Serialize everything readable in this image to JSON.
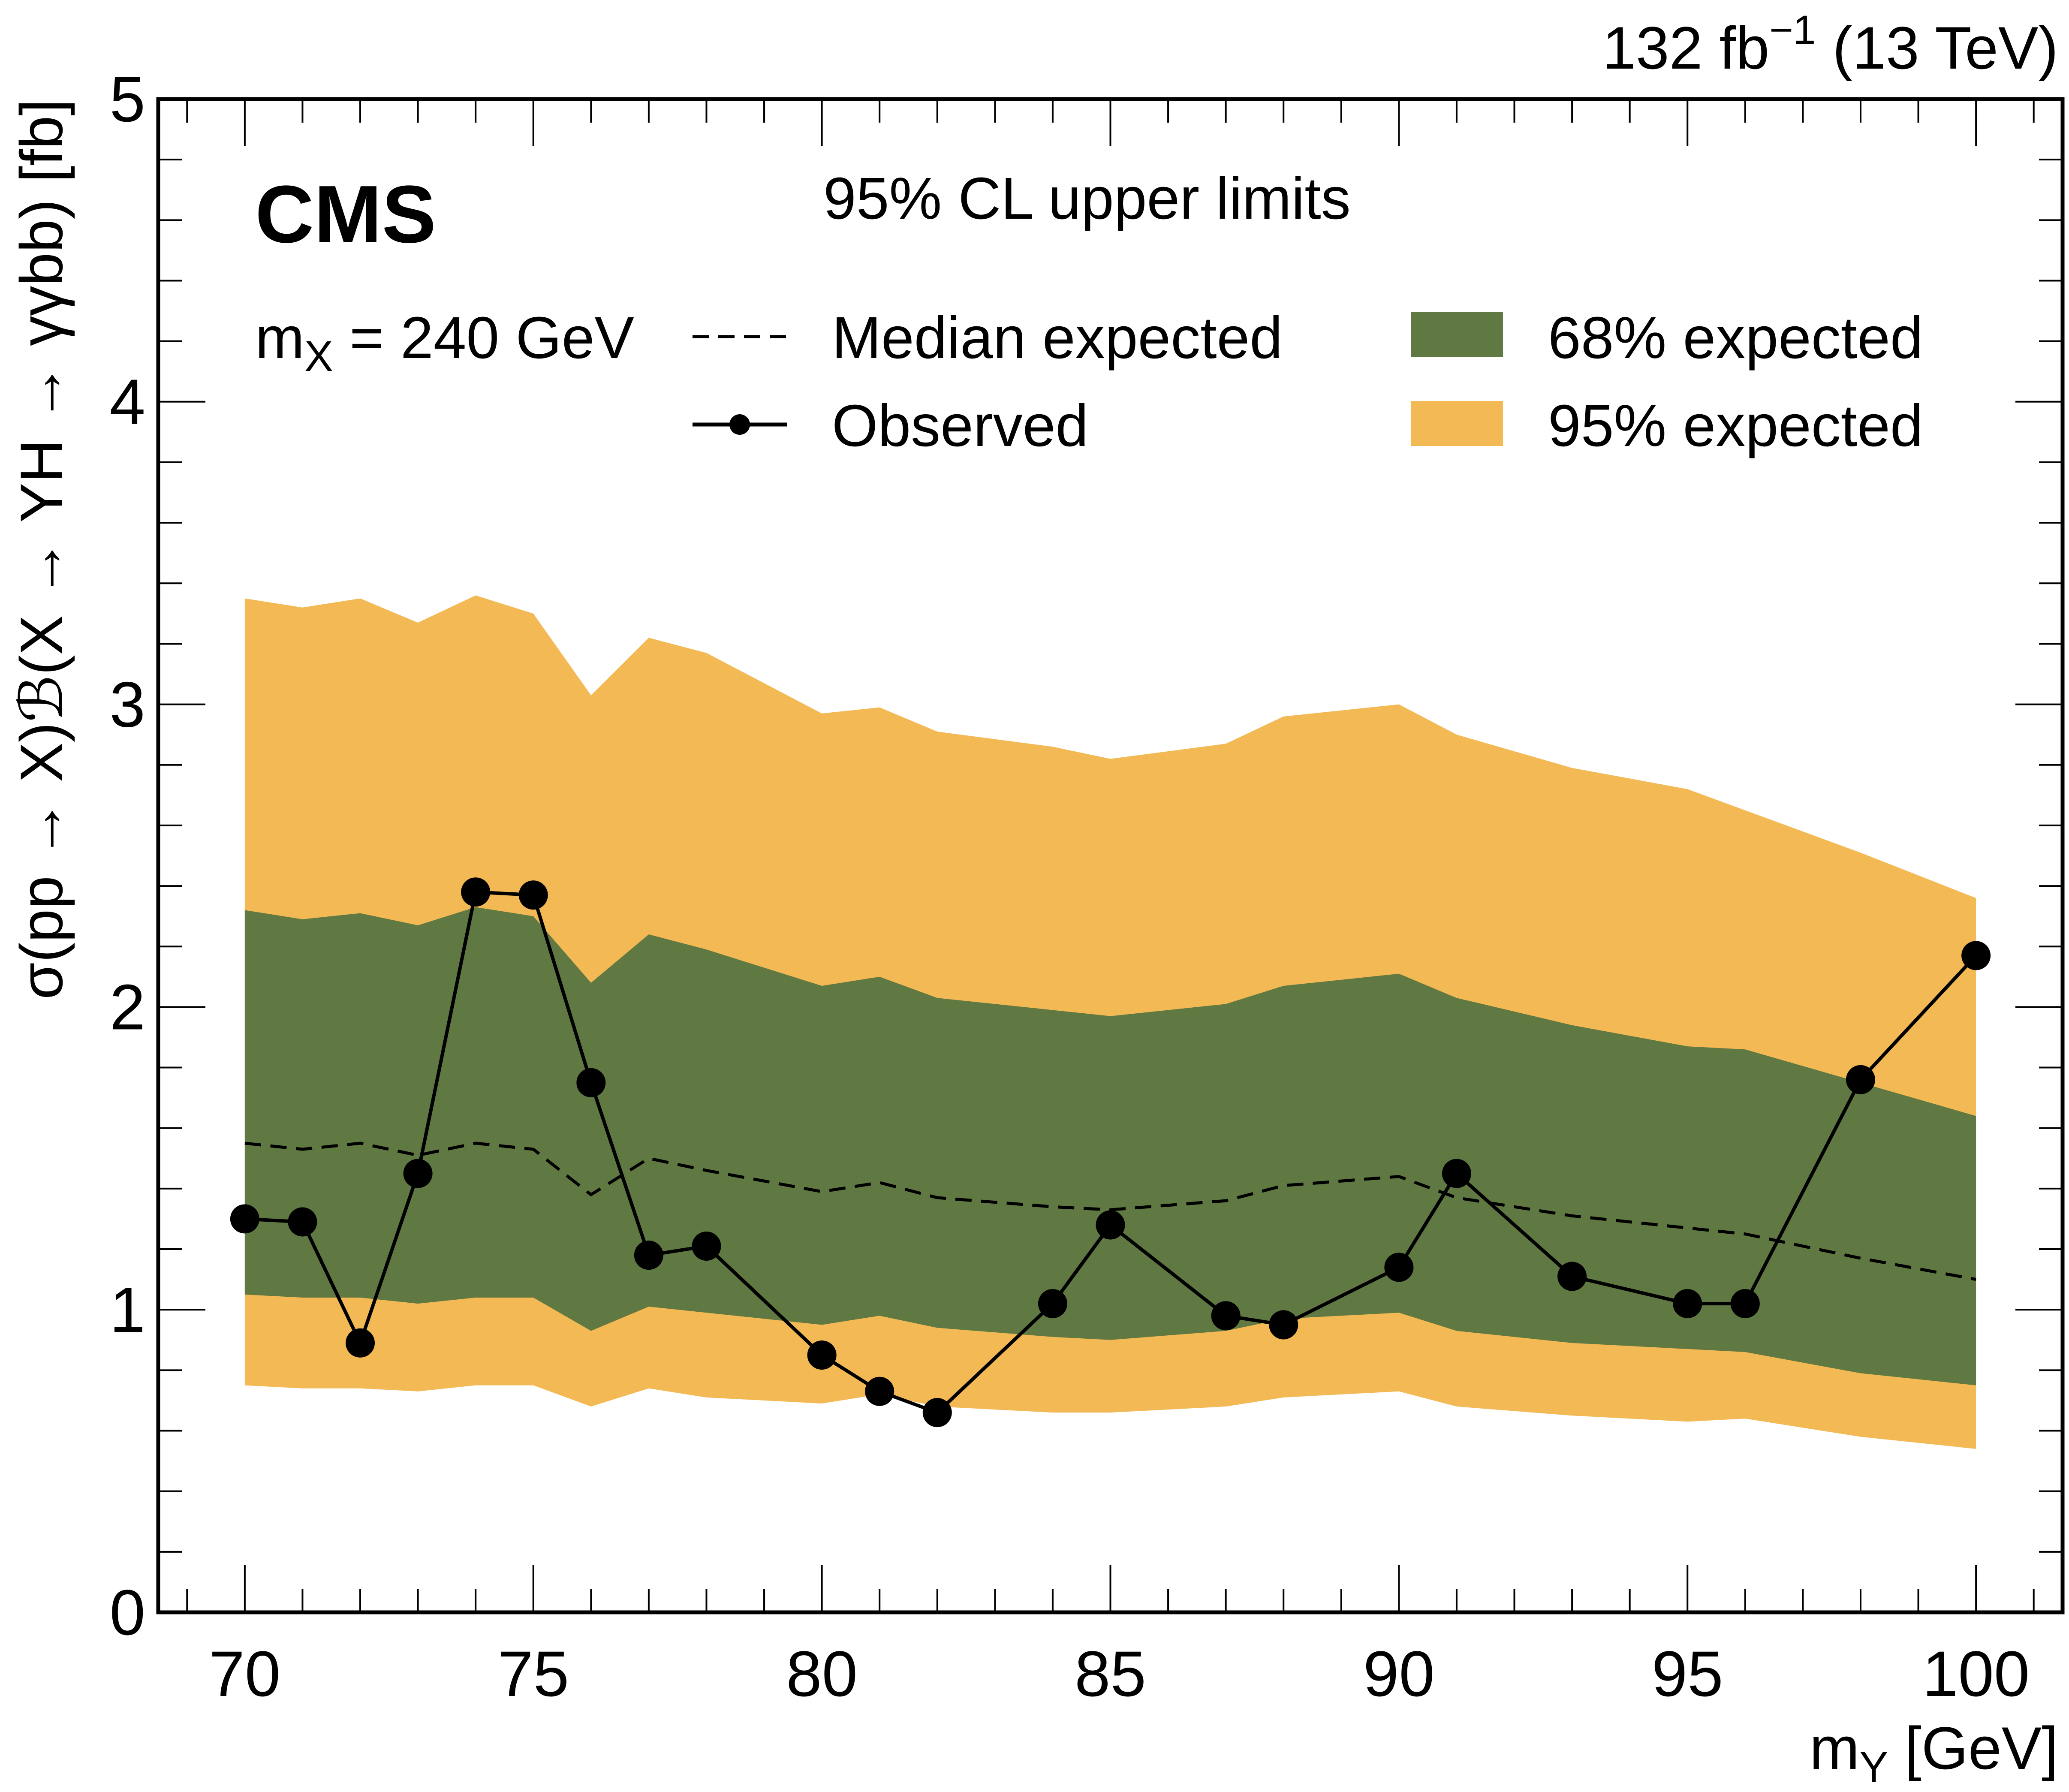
{
  "chart_data": {
    "type": "line",
    "title": "95% CL upper limits",
    "experiment_label": "CMS",
    "luminosity_label": {
      "prefix": "132 fb",
      "superscript": "−1",
      "suffix": " (13 TeV)"
    },
    "annotation": {
      "prefix": "m",
      "subscript": "X",
      "suffix": " = 240 GeV"
    },
    "xlabel": {
      "prefix": "m",
      "subscript": "Y",
      "suffix": " [GeV]"
    },
    "ylabel": "σ(pp → X)ℬ(X → YH → γγbb) [fb]",
    "xlim": [
      68.5,
      101.5
    ],
    "ylim": [
      0,
      5
    ],
    "xticks_major": [
      70,
      75,
      80,
      85,
      90,
      95,
      100
    ],
    "xtick_labels": [
      "70",
      "75",
      "80",
      "85",
      "90",
      "95",
      "100"
    ],
    "xtick_minor_step": 1,
    "yticks_major": [
      0,
      1,
      2,
      3,
      4,
      5
    ],
    "ytick_labels": [
      "0",
      "1",
      "2",
      "3",
      "4",
      "5"
    ],
    "ytick_minor_step": 0.2,
    "grid": false,
    "legend_placement": "top",
    "x": [
      70,
      71,
      72,
      73,
      74,
      75,
      76,
      77,
      78,
      80,
      81,
      82,
      84,
      85,
      87,
      88,
      90,
      91,
      93,
      95,
      96,
      98,
      100
    ],
    "series": [
      {
        "name": "Observed",
        "style": "solid-line-with-markers",
        "color": "#000000",
        "values": [
          1.3,
          1.29,
          0.89,
          1.45,
          2.38,
          2.37,
          1.75,
          1.18,
          1.21,
          0.85,
          0.73,
          0.66,
          1.02,
          1.28,
          0.98,
          0.95,
          1.14,
          1.45,
          1.11,
          1.02,
          1.02,
          1.76,
          2.17
        ]
      },
      {
        "name": "Median expected",
        "style": "dashed-line",
        "color": "#000000",
        "values": [
          1.55,
          1.53,
          1.55,
          1.51,
          1.55,
          1.53,
          1.38,
          1.5,
          1.46,
          1.39,
          1.42,
          1.37,
          1.34,
          1.33,
          1.36,
          1.41,
          1.44,
          1.37,
          1.31,
          1.27,
          1.25,
          1.17,
          1.1
        ]
      }
    ],
    "bands": [
      {
        "name": "95% expected",
        "color": "#F3B955",
        "upper": [
          3.35,
          3.32,
          3.35,
          3.27,
          3.36,
          3.3,
          3.03,
          3.22,
          3.17,
          2.97,
          2.99,
          2.91,
          2.86,
          2.82,
          2.87,
          2.96,
          3.0,
          2.9,
          2.79,
          2.72,
          2.65,
          2.51,
          2.36
        ],
        "lower": [
          0.75,
          0.74,
          0.74,
          0.73,
          0.75,
          0.75,
          0.68,
          0.74,
          0.71,
          0.69,
          0.72,
          0.68,
          0.66,
          0.66,
          0.68,
          0.71,
          0.73,
          0.68,
          0.65,
          0.63,
          0.64,
          0.58,
          0.54
        ]
      },
      {
        "name": "68% expected",
        "color": "#607841",
        "upper": [
          2.32,
          2.29,
          2.31,
          2.27,
          2.33,
          2.3,
          2.08,
          2.24,
          2.19,
          2.07,
          2.1,
          2.03,
          1.99,
          1.97,
          2.01,
          2.07,
          2.11,
          2.03,
          1.94,
          1.87,
          1.86,
          1.75,
          1.64
        ],
        "lower": [
          1.05,
          1.04,
          1.04,
          1.02,
          1.04,
          1.04,
          0.93,
          1.01,
          0.99,
          0.95,
          0.98,
          0.94,
          0.91,
          0.9,
          0.93,
          0.97,
          0.99,
          0.93,
          0.89,
          0.87,
          0.86,
          0.79,
          0.75
        ]
      }
    ],
    "legend": [
      {
        "label": "Median expected",
        "symbol": "dashed-line"
      },
      {
        "label": "68% expected",
        "symbol": "green-box"
      },
      {
        "label": "Observed",
        "symbol": "line-with-marker"
      },
      {
        "label": "95% expected",
        "symbol": "orange-box"
      }
    ]
  }
}
